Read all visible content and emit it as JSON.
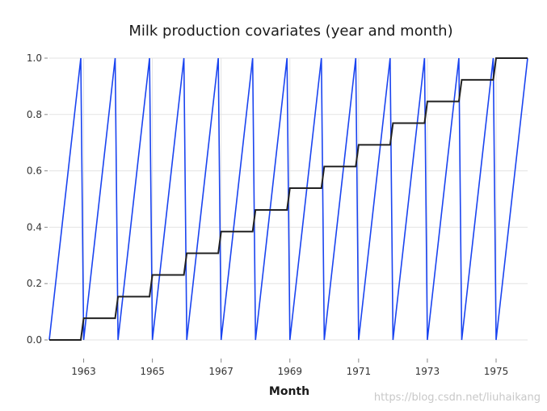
{
  "chart_data": {
    "type": "line",
    "title": "Milk production covariates (year and month)",
    "xlabel": "Month",
    "ylabel": "",
    "x_range": [
      1962.0,
      1975.9167
    ],
    "ylim": [
      0.0,
      1.0
    ],
    "x_ticks": [
      1963,
      1965,
      1967,
      1969,
      1971,
      1973,
      1975
    ],
    "x_tick_labels": [
      "1963",
      "1965",
      "1967",
      "1969",
      "1971",
      "1973",
      "1975"
    ],
    "y_ticks": [
      0.0,
      0.2,
      0.4,
      0.6,
      0.8,
      1.0
    ],
    "y_tick_labels": [
      "0.0",
      "0.2",
      "0.4",
      "0.6",
      "0.8",
      "1.0"
    ],
    "grid": true,
    "legend": "none",
    "series": [
      {
        "role": "month",
        "color": "#1a44f0",
        "description": "month of year scaled 0 (Jan) to 1 (Dec), repeating every year 1962-1975",
        "years": [
          1962,
          1963,
          1964,
          1965,
          1966,
          1967,
          1968,
          1969,
          1970,
          1971,
          1972,
          1973,
          1974,
          1975
        ],
        "month_values": [
          0.0,
          0.0909,
          0.1818,
          0.2727,
          0.3636,
          0.4545,
          0.5455,
          0.6364,
          0.7273,
          0.8182,
          0.9091,
          1.0
        ]
      },
      {
        "role": "year",
        "color": "#222222",
        "description": "year scaled 0 (1962) to 1 (1975), constant within each year",
        "years": [
          1962,
          1963,
          1964,
          1965,
          1966,
          1967,
          1968,
          1969,
          1970,
          1971,
          1972,
          1973,
          1974,
          1975
        ],
        "values": [
          0.0,
          0.0769,
          0.1538,
          0.2308,
          0.3077,
          0.3846,
          0.4615,
          0.5385,
          0.6154,
          0.6923,
          0.7692,
          0.8462,
          0.9231,
          1.0
        ]
      }
    ]
  },
  "watermark": "https://blog.csdn.net/liuhaikang"
}
